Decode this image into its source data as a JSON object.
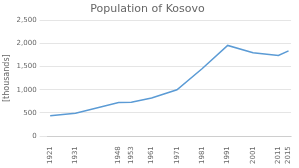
{
  "chart_data": {
    "type": "line",
    "title": "Population of Kosovo",
    "ylabel": "[thousands]",
    "x": [
      1921,
      1931,
      1948,
      1953,
      1961,
      1971,
      1981,
      1991,
      2001,
      2011,
      2015
    ],
    "values": [
      439,
      493,
      727,
      733,
      823,
      1000,
      1460,
      1956,
      1800,
      1739,
      1840
    ],
    "color": "#5b9bd5",
    "xlim": [
      1920,
      2016
    ],
    "xticks": [
      1921,
      1931,
      1948,
      1953,
      1961,
      1971,
      1981,
      1991,
      2001,
      2011,
      2015
    ],
    "ylim": [
      0,
      2500
    ],
    "yticks": [
      0,
      500,
      {
        "value": 1000,
        "label": "1,000"
      },
      {
        "value": 1500,
        "label": "1,500"
      },
      {
        "value": 2000,
        "label": "2,000"
      },
      {
        "value": 2500,
        "label": "2,500"
      }
    ],
    "grid": "y"
  }
}
